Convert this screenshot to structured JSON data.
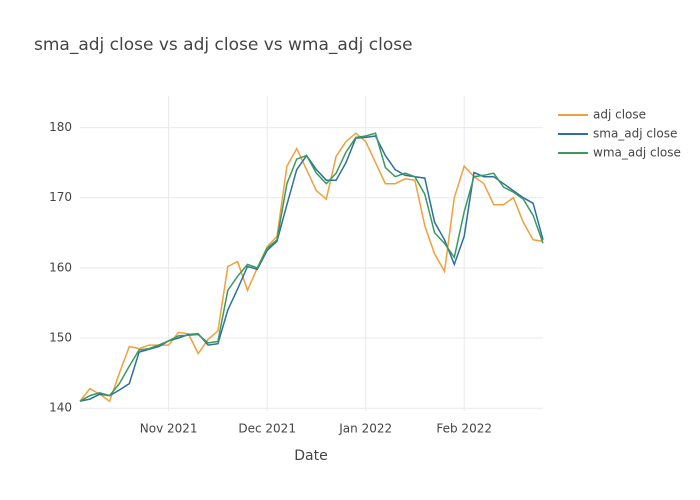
{
  "chart_data": {
    "type": "line",
    "title": "sma_adj close vs adj close vs wma_adj close",
    "x_label": "Date",
    "categories": [
      null,
      null,
      null,
      null,
      null,
      null,
      null,
      null,
      null,
      "Nov 2021",
      null,
      null,
      null,
      null,
      null,
      null,
      null,
      null,
      null,
      "Dec 2021",
      null,
      null,
      null,
      null,
      null,
      null,
      null,
      null,
      null,
      "Jan 2022",
      null,
      null,
      null,
      null,
      null,
      null,
      null,
      null,
      null,
      "Feb 2022",
      null,
      null,
      null,
      null,
      null,
      null,
      null,
      null
    ],
    "series": [
      {
        "name": "adj close",
        "color": "#f0a03c",
        "values": [
          141,
          142.8,
          142,
          141,
          145,
          148.8,
          148.5,
          149,
          149,
          149,
          150.8,
          150.6,
          147.8,
          149.8,
          151,
          160.2,
          160.9,
          156.8,
          160,
          163,
          164.5,
          174.5,
          177,
          174,
          171,
          169.8,
          175.9,
          178,
          179.2,
          178,
          175,
          172,
          172,
          172.7,
          172.5,
          166,
          162,
          159.5,
          170,
          174.5,
          173,
          172,
          169,
          169,
          170,
          166.5,
          164,
          163.8
        ]
      },
      {
        "name": "sma_adj close",
        "color": "#2f6f9f",
        "values": [
          141,
          141.3,
          142,
          141.8,
          142.6,
          143.5,
          148,
          148.4,
          148.8,
          149.6,
          150,
          150.5,
          150.6,
          149,
          149.2,
          154,
          157,
          160.2,
          159.8,
          162.5,
          163.8,
          169,
          174,
          176,
          174,
          172.5,
          172.5,
          175,
          178.5,
          178.6,
          178.8,
          176,
          174,
          173.2,
          173,
          172.8,
          166.5,
          164,
          160.5,
          164.5,
          173.6,
          173,
          173,
          172,
          171,
          170,
          169.2,
          164
        ]
      },
      {
        "name": "wma_adj close",
        "color": "#3a9a5c",
        "values": [
          141,
          141.8,
          142.2,
          141.8,
          143.5,
          146,
          148.3,
          148.5,
          149,
          149.6,
          150.3,
          150.4,
          150.5,
          149.3,
          149.5,
          156.8,
          158.8,
          160.5,
          160,
          162.8,
          164,
          172,
          175.5,
          176,
          173.5,
          172,
          173.5,
          176.5,
          178.6,
          178.8,
          179.2,
          174.3,
          173,
          173.5,
          173,
          170.5,
          165,
          163.5,
          161.5,
          168,
          173,
          173.2,
          173.5,
          171.5,
          170.8,
          169.8,
          167.5,
          163.5
        ]
      }
    ],
    "ylim": [
      139.6,
      184.5
    ],
    "yticks": [
      140,
      150,
      160,
      170,
      180
    ],
    "grid": true
  }
}
